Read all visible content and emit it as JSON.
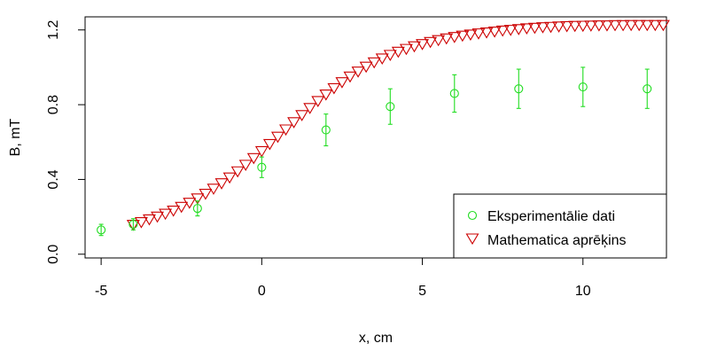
{
  "chart_data": {
    "type": "scatter",
    "xlabel": "x, cm",
    "ylabel": "B, mT",
    "xlim": [
      -5.5,
      12.6
    ],
    "ylim": [
      -0.02,
      1.27
    ],
    "x_ticks": [
      -5,
      0,
      5,
      10
    ],
    "x_tick_labels": [
      "-5",
      "0",
      "5",
      "10"
    ],
    "y_ticks": [
      0.0,
      0.4,
      0.8,
      1.2
    ],
    "y_tick_labels": [
      "0.0",
      "0.4",
      "0.8",
      "1.2"
    ],
    "legend_position": "bottom-right",
    "colors": {
      "experimental": "#22dd22",
      "computed": "#cc0000"
    },
    "series": [
      {
        "name": "Eksperimentālie dati",
        "marker": "circle",
        "x": [
          -5,
          -4,
          -2,
          0,
          2,
          4,
          6,
          8,
          10,
          12
        ],
        "y": [
          0.13,
          0.16,
          0.245,
          0.465,
          0.665,
          0.79,
          0.86,
          0.885,
          0.895,
          0.885
        ],
        "err": [
          0.03,
          0.03,
          0.04,
          0.055,
          0.085,
          0.095,
          0.1,
          0.105,
          0.105,
          0.105
        ]
      },
      {
        "name": "Mathematica aprēķins",
        "marker": "triangle-down",
        "x": [
          -4.0,
          -3.75,
          -3.5,
          -3.25,
          -3.0,
          -2.75,
          -2.5,
          -2.25,
          -2.0,
          -1.75,
          -1.5,
          -1.25,
          -1.0,
          -0.75,
          -0.5,
          -0.25,
          0.0,
          0.25,
          0.5,
          0.75,
          1.0,
          1.25,
          1.5,
          1.75,
          2.0,
          2.25,
          2.5,
          2.75,
          3.0,
          3.25,
          3.5,
          3.75,
          4.0,
          4.25,
          4.5,
          4.75,
          5.0,
          5.25,
          5.5,
          5.75,
          6.0,
          6.25,
          6.5,
          6.75,
          7.0,
          7.25,
          7.5,
          7.75,
          8.0,
          8.25,
          8.5,
          8.75,
          9.0,
          9.25,
          9.5,
          9.75,
          10.0,
          10.25,
          10.5,
          10.75,
          11.0,
          11.25,
          11.5,
          11.75,
          12.0,
          12.25,
          12.5
        ],
        "y": [
          0.16,
          0.174,
          0.189,
          0.204,
          0.219,
          0.236,
          0.256,
          0.278,
          0.301,
          0.326,
          0.353,
          0.382,
          0.413,
          0.446,
          0.481,
          0.517,
          0.554,
          0.592,
          0.631,
          0.67,
          0.709,
          0.747,
          0.785,
          0.822,
          0.857,
          0.891,
          0.923,
          0.953,
          0.98,
          1.006,
          1.029,
          1.05,
          1.069,
          1.086,
          1.101,
          1.115,
          1.127,
          1.138,
          1.148,
          1.157,
          1.165,
          1.172,
          1.178,
          1.184,
          1.189,
          1.194,
          1.199,
          1.203,
          1.207,
          1.211,
          1.214,
          1.217,
          1.219,
          1.221,
          1.223,
          1.224,
          1.225,
          1.226,
          1.227,
          1.227,
          1.228,
          1.228,
          1.229,
          1.229,
          1.229,
          1.229,
          1.229
        ]
      }
    ]
  }
}
